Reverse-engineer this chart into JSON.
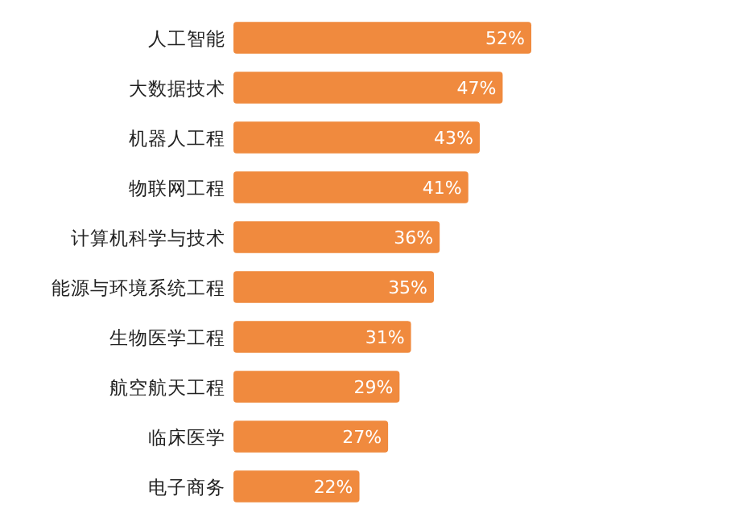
{
  "chart_data": {
    "type": "bar",
    "orientation": "horizontal",
    "categories": [
      "人工智能",
      "大数据技术",
      "机器人工程",
      "物联网工程",
      "计算机科学与技术",
      "能源与环境系统工程",
      "生物医学工程",
      "航空航天工程",
      "临床医学",
      "电子商务"
    ],
    "values": [
      52,
      47,
      43,
      41,
      36,
      35,
      31,
      29,
      27,
      22
    ],
    "value_labels": [
      "52%",
      "47%",
      "43%",
      "41%",
      "36%",
      "35%",
      "31%",
      "29%",
      "27%",
      "22%"
    ],
    "color": "#f08a3e"
  }
}
